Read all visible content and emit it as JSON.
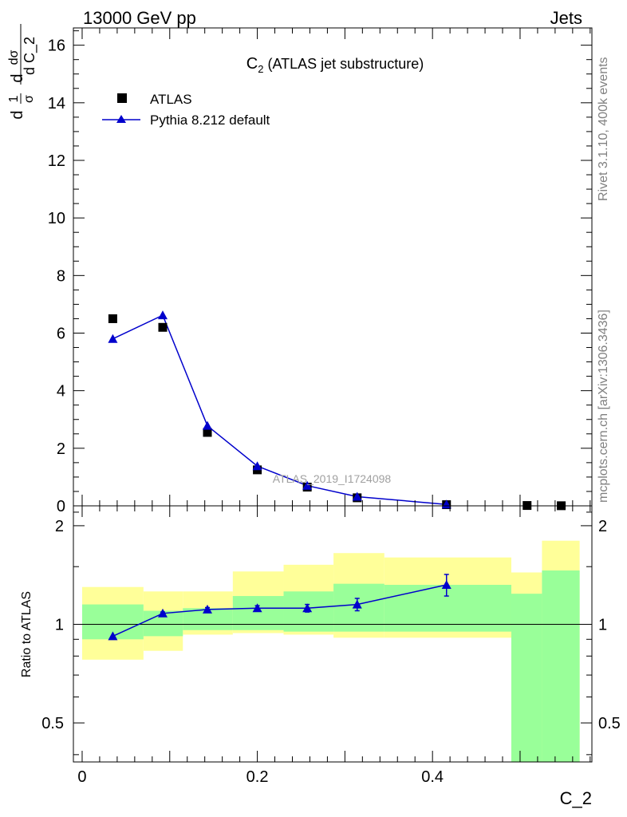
{
  "header": {
    "left": "13000 GeV pp",
    "right": "Jets"
  },
  "side_labels": {
    "rivet": "Rivet 3.1.10,  400k events",
    "mcplots": "mcplots.cern.ch [arXiv:1306.3436]"
  },
  "chart_data": [
    {
      "type": "scatter",
      "title_main": "C",
      "title_sub": "2",
      "title_rest": " (ATLAS jet substructure)",
      "watermark": "ATLAS_2019_I1724098",
      "ylabel": {
        "d1": "d",
        "one": "1",
        "sigma": "σ",
        "d2": "d",
        "dsigma": "dσ",
        "dC": "d C_2"
      },
      "xlim": [
        -0.01,
        0.582
      ],
      "ylim": [
        0,
        16.6
      ],
      "y_ticks": [
        0,
        2,
        4,
        6,
        8,
        10,
        12,
        14,
        16
      ],
      "y_tick_labels": [
        "0",
        "2",
        "4",
        "6",
        "8",
        "10",
        "12",
        "14",
        "16"
      ],
      "legend_position": "top-left",
      "series": [
        {
          "name": "ATLAS",
          "marker": "square",
          "color": "#000000",
          "x": [
            0.035,
            0.092,
            0.143,
            0.2,
            0.257,
            0.314,
            0.416,
            0.508,
            0.547
          ],
          "y": [
            6.5,
            6.2,
            2.55,
            1.25,
            0.65,
            0.28,
            0.04,
            0.012,
            0.004
          ]
        },
        {
          "name": "Pythia 8.212 default",
          "marker": "triangle",
          "color": "#0000cc",
          "x": [
            0.035,
            0.092,
            0.143,
            0.2,
            0.257,
            0.314,
            0.416
          ],
          "y": [
            5.8,
            6.62,
            2.78,
            1.38,
            0.7,
            0.32,
            0.05
          ]
        }
      ]
    },
    {
      "type": "line",
      "ylabel": "Ratio to ATLAS",
      "xlabel": "C_2",
      "xlim": [
        -0.01,
        0.582
      ],
      "ylim": [
        0.38,
        2.3
      ],
      "x_ticks": [
        0,
        0.2,
        0.4
      ],
      "x_tick_labels": [
        "0",
        "0.2",
        "0.4"
      ],
      "y_ticks": [
        0.5,
        1,
        2
      ],
      "y_tick_labels": [
        "0.5",
        "1",
        "2"
      ],
      "bands": {
        "edges": [
          0.0,
          0.07,
          0.115,
          0.172,
          0.23,
          0.287,
          0.345,
          0.49,
          0.525,
          0.568
        ],
        "yellow_low": [
          0.78,
          0.83,
          0.93,
          0.94,
          0.93,
          0.91,
          0.91,
          0.38,
          0.38
        ],
        "yellow_high": [
          1.3,
          1.26,
          1.26,
          1.45,
          1.52,
          1.65,
          1.6,
          1.44,
          1.8
        ],
        "green_low": [
          0.9,
          0.92,
          0.96,
          0.96,
          0.95,
          0.95,
          0.95,
          0.38,
          0.38
        ],
        "green_high": [
          1.15,
          1.1,
          1.12,
          1.22,
          1.26,
          1.33,
          1.32,
          1.24,
          1.46
        ]
      },
      "series": [
        {
          "name": "Pythia 8.212 default",
          "color": "#0000cc",
          "x": [
            0.035,
            0.092,
            0.143,
            0.2,
            0.257,
            0.314,
            0.416
          ],
          "y": [
            0.92,
            1.08,
            1.11,
            1.12,
            1.12,
            1.15,
            1.32
          ],
          "yerr": [
            0,
            0.01,
            0.015,
            0.02,
            0.03,
            0.05,
            0.1
          ]
        }
      ]
    }
  ]
}
